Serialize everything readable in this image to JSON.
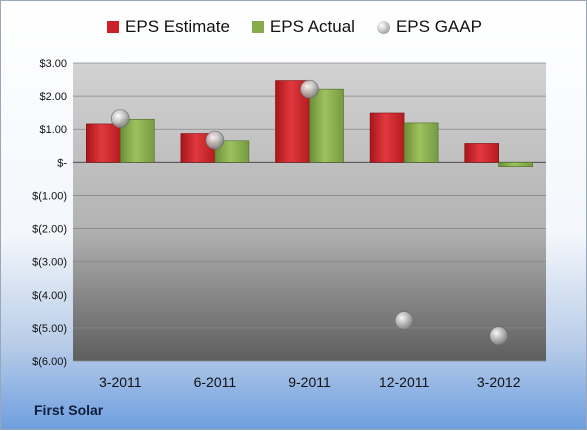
{
  "company": "First Solar",
  "legend": {
    "estimate": "EPS Estimate",
    "actual": "EPS Actual",
    "gaap": "EPS GAAP"
  },
  "colors": {
    "estimate": "#cc2127",
    "actual": "#86ab4c",
    "gaap": "#a8a8a8"
  },
  "chart_data": {
    "type": "bar",
    "categories": [
      "3-2011",
      "6-2011",
      "9-2011",
      "12-2011",
      "3-2012"
    ],
    "series": [
      {
        "name": "EPS Estimate",
        "kind": "bar",
        "values": [
          1.16,
          0.87,
          2.47,
          1.49,
          0.57
        ]
      },
      {
        "name": "EPS Actual",
        "kind": "bar",
        "values": [
          1.3,
          0.65,
          2.21,
          1.19,
          -0.13
        ]
      },
      {
        "name": "EPS GAAP",
        "kind": "marker",
        "values": [
          1.32,
          0.67,
          2.21,
          -4.78,
          -5.24
        ]
      }
    ],
    "ylim": [
      -6,
      3
    ],
    "yticks": [
      3,
      2,
      1,
      0,
      -1,
      -2,
      -3,
      -4,
      -5,
      -6
    ],
    "ytick_labels": [
      "$3.00",
      "$2.00",
      "$1.00",
      "$-",
      "$(1.00)",
      "$(2.00)",
      "$(3.00)",
      "$(4.00)",
      "$(5.00)",
      "$(6.00)"
    ],
    "grid": true,
    "legend_position": "top"
  }
}
